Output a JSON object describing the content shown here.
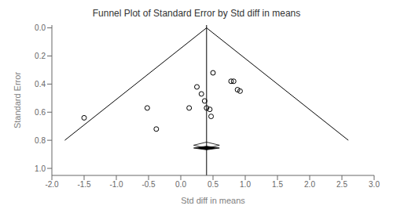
{
  "chart_data": {
    "type": "scatter",
    "title": "Funnel Plot of Standard Error by Std diff in means",
    "x_label": "Std diff in means",
    "y_label": "Standard Error",
    "xlim": [
      -2.0,
      3.0
    ],
    "ylim": [
      1.05,
      -0.02
    ],
    "xticks": [
      {
        "value": -2.0,
        "label": "-2.0"
      },
      -1.5,
      {
        "value": -1.0,
        "label": "-1.0"
      },
      -0.5,
      {
        "value": 0.0,
        "label": "0.0"
      },
      0.5,
      {
        "value": 1.0,
        "label": "1.0"
      },
      1.5,
      {
        "value": 2.0,
        "label": "2.0"
      },
      2.5,
      {
        "value": 3.0,
        "label": "3.0"
      }
    ],
    "yticks": [
      {
        "value": 0.0,
        "label": "0.0"
      },
      0.2,
      0.4,
      0.6,
      0.8,
      {
        "value": 1.0,
        "label": "1.0"
      }
    ],
    "series": [
      {
        "type": "line",
        "color": "#000000",
        "x": [
          0.4,
          -1.8
        ],
        "values": [
          0.0,
          0.8
        ]
      },
      {
        "type": "line",
        "color": "#000000",
        "x": [
          0.4,
          2.6
        ],
        "values": [
          0.0,
          0.8
        ]
      },
      {
        "type": "scatter",
        "marker": "open_circle",
        "color": "#000000",
        "x": [
          -1.5,
          -0.38,
          -0.52,
          0.13,
          0.25,
          0.32,
          0.37,
          0.4,
          0.45,
          0.47,
          0.5,
          0.78,
          0.82,
          0.88,
          0.92
        ],
        "values": [
          0.64,
          0.72,
          0.57,
          0.57,
          0.42,
          0.47,
          0.52,
          0.57,
          0.58,
          0.63,
          0.32,
          0.38,
          0.38,
          0.44,
          0.45
        ]
      }
    ],
    "reference_line": {
      "x": 0.4,
      "color": "#000000"
    },
    "diamonds": [
      {
        "x": 0.4,
        "y": 0.835,
        "half_width": 0.2,
        "half_height": 0.022,
        "color": "#ffffff"
      },
      {
        "x": 0.4,
        "y": 0.855,
        "half_width": 0.2,
        "half_height": 0.013,
        "color": "#000000"
      }
    ]
  }
}
